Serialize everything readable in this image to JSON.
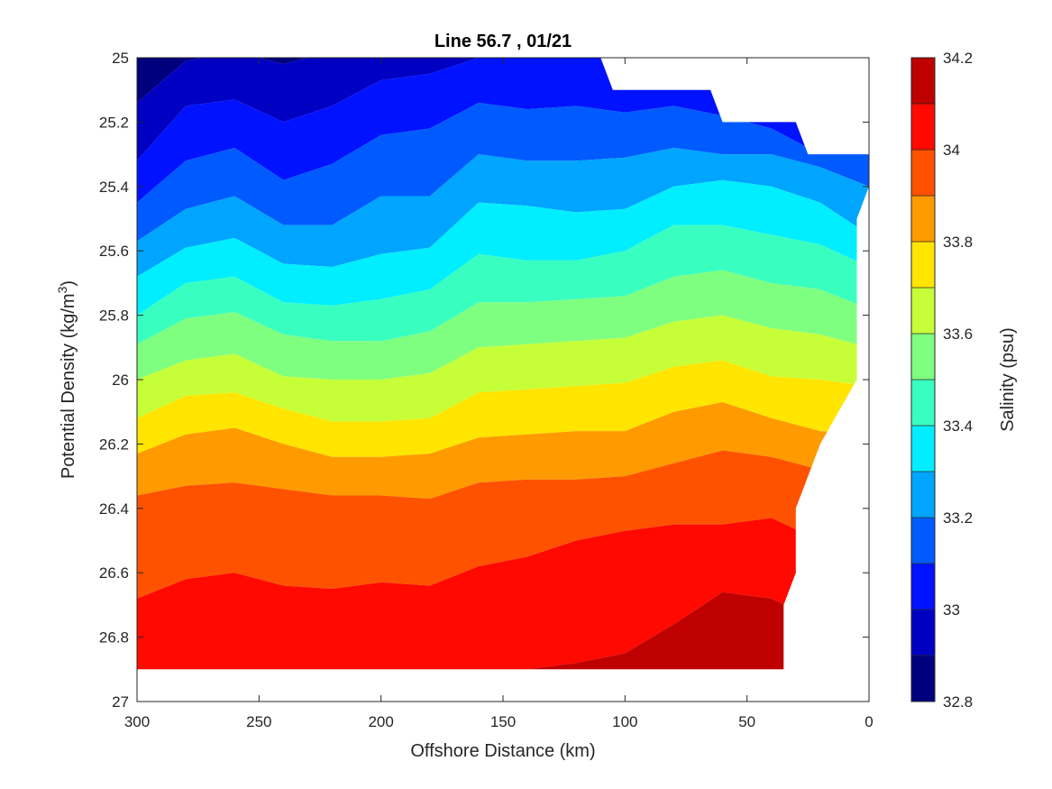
{
  "chart_data": {
    "type": "filled-contour",
    "title": "Line 56.7 , 01/21",
    "xlabel": "Offshore Distance (km)",
    "ylabel_prefix": "Potential Density (kg/m",
    "ylabel_sup": "3",
    "ylabel_suffix": ")",
    "xlim": [
      300,
      0
    ],
    "x_reversed": true,
    "ylim": [
      25,
      27
    ],
    "y_reversed": true,
    "x_ticks": [
      300,
      250,
      200,
      150,
      100,
      50,
      0
    ],
    "y_ticks": [
      25,
      25.2,
      25.4,
      25.6,
      25.8,
      26,
      26.2,
      26.4,
      26.6,
      26.8,
      27
    ],
    "colorbar": {
      "label": "Salinity (psu)",
      "range": [
        32.8,
        34.2
      ],
      "ticks": [
        32.8,
        33,
        33.2,
        33.4,
        33.6,
        33.8,
        34,
        34.2
      ],
      "levels": [
        32.8,
        32.9,
        33.0,
        33.1,
        33.2,
        33.3,
        33.4,
        33.5,
        33.6,
        33.7,
        33.8,
        33.9,
        34.0,
        34.1,
        34.2
      ],
      "colors": [
        "#00007f",
        "#0000c3",
        "#0012ff",
        "#005bff",
        "#00a5ff",
        "#00eeff",
        "#38ffc0",
        "#7fff7f",
        "#c6ff38",
        "#ffe500",
        "#ff9b00",
        "#ff5200",
        "#ff0900",
        "#bf0000"
      ]
    },
    "x_grid": [
      300,
      280,
      260,
      240,
      220,
      200,
      180,
      160,
      140,
      120,
      100,
      80,
      60,
      40,
      20,
      0
    ],
    "level_isopycnals": [
      {
        "salinity": 33.0,
        "density": [
          25.14,
          25.01,
          24.98,
          25.02,
          24.98,
          24.96,
          24.96,
          24.96,
          24.96,
          24.96,
          24.96,
          24.96,
          24.96,
          24.96,
          24.96,
          24.96
        ]
      },
      {
        "salinity": 33.1,
        "density": [
          25.32,
          25.15,
          25.13,
          25.2,
          25.15,
          25.07,
          25.05,
          25.0,
          24.98,
          24.97,
          24.97,
          24.97,
          24.97,
          24.97,
          24.97,
          24.97
        ]
      },
      {
        "salinity": 33.2,
        "density": [
          25.45,
          25.32,
          25.28,
          25.38,
          25.33,
          25.24,
          25.22,
          25.14,
          25.16,
          25.15,
          25.17,
          25.15,
          25.18,
          25.22,
          25.3,
          25.29
        ]
      },
      {
        "salinity": 33.3,
        "density": [
          25.57,
          25.47,
          25.43,
          25.52,
          25.52,
          25.43,
          25.43,
          25.3,
          25.32,
          25.32,
          25.31,
          25.28,
          25.3,
          25.3,
          25.34,
          25.4
        ]
      },
      {
        "salinity": 33.4,
        "density": [
          25.68,
          25.59,
          25.56,
          25.64,
          25.65,
          25.61,
          25.59,
          25.45,
          25.46,
          25.48,
          25.47,
          25.4,
          25.38,
          25.4,
          25.45,
          25.55
        ]
      },
      {
        "salinity": 33.5,
        "density": [
          25.8,
          25.7,
          25.68,
          25.76,
          25.77,
          25.75,
          25.72,
          25.61,
          25.63,
          25.63,
          25.6,
          25.52,
          25.52,
          25.55,
          25.58,
          25.65
        ]
      },
      {
        "salinity": 33.6,
        "density": [
          25.89,
          25.81,
          25.79,
          25.86,
          25.88,
          25.88,
          25.85,
          25.76,
          25.76,
          25.75,
          25.74,
          25.68,
          25.66,
          25.7,
          25.72,
          25.78
        ]
      },
      {
        "salinity": 33.7,
        "density": [
          26.0,
          25.94,
          25.92,
          25.99,
          26.0,
          26.0,
          25.98,
          25.9,
          25.89,
          25.88,
          25.87,
          25.82,
          25.8,
          25.84,
          25.86,
          25.9
        ]
      },
      {
        "salinity": 33.8,
        "density": [
          26.12,
          26.05,
          26.04,
          26.09,
          26.13,
          26.13,
          26.12,
          26.04,
          26.03,
          26.02,
          26.01,
          25.96,
          25.94,
          25.99,
          26.0,
          26.02
        ]
      },
      {
        "salinity": 33.9,
        "density": [
          26.23,
          26.17,
          26.15,
          26.2,
          26.24,
          26.24,
          26.23,
          26.18,
          26.17,
          26.16,
          26.16,
          26.1,
          26.07,
          26.12,
          26.16,
          26.17
        ]
      },
      {
        "salinity": 34.0,
        "density": [
          26.36,
          26.33,
          26.32,
          26.34,
          26.36,
          26.36,
          26.37,
          26.32,
          26.31,
          26.31,
          26.3,
          26.26,
          26.22,
          26.24,
          26.28,
          26.3
        ]
      },
      {
        "salinity": 34.1,
        "density": [
          26.68,
          26.62,
          26.6,
          26.64,
          26.65,
          26.63,
          26.64,
          26.58,
          26.55,
          26.5,
          26.47,
          26.45,
          26.45,
          26.43,
          26.5,
          26.55
        ]
      },
      {
        "salinity": 34.2,
        "density": [
          26.9,
          26.9,
          26.9,
          26.9,
          26.9,
          26.9,
          26.9,
          26.9,
          26.9,
          26.88,
          26.85,
          26.76,
          26.66,
          26.68,
          26.75,
          26.8
        ]
      }
    ],
    "data_mask_polygon": [
      [
        300,
        25
      ],
      [
        110,
        25
      ],
      [
        105,
        25.1
      ],
      [
        65,
        25.1
      ],
      [
        60,
        25.2
      ],
      [
        30,
        25.2
      ],
      [
        25,
        25.3
      ],
      [
        0,
        25.3
      ],
      [
        0,
        25.4
      ],
      [
        5,
        25.5
      ],
      [
        5,
        26.0
      ],
      [
        20,
        26.2
      ],
      [
        30,
        26.4
      ],
      [
        30,
        26.6
      ],
      [
        35,
        26.7
      ],
      [
        35,
        26.9
      ],
      [
        300,
        26.9
      ]
    ]
  }
}
